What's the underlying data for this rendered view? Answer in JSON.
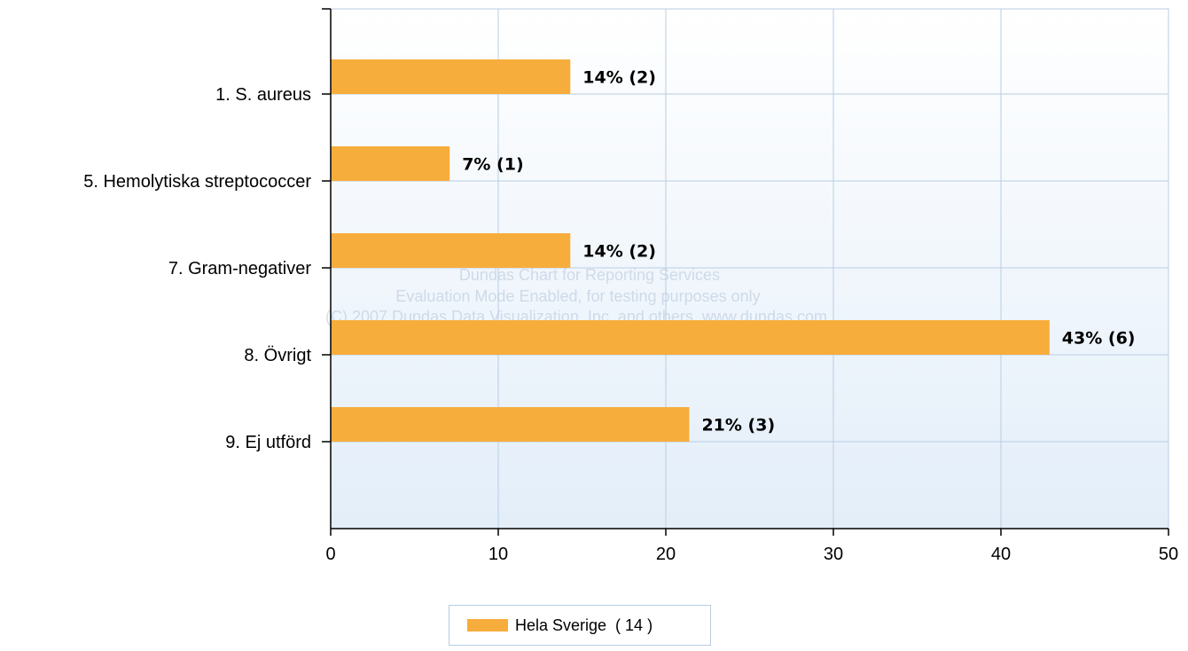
{
  "chart_data": {
    "type": "bar",
    "orientation": "horizontal",
    "categories": [
      "1. S. aureus",
      "5. Hemolytiska streptococcer",
      "7. Gram-negativer",
      "8. Övrigt",
      "9. Ej utförd"
    ],
    "series": [
      {
        "name": "Hela Sverige  ( 14 )",
        "values": [
          14.3,
          7.1,
          14.3,
          42.9,
          21.4
        ],
        "color": "#f7ad3c"
      }
    ],
    "data_labels": [
      "14% (2)",
      "7% (1)",
      "14% (2)",
      "43% (6)",
      "21% (3)"
    ],
    "xlim": [
      0,
      50
    ],
    "x_ticks": [
      "0",
      "10",
      "20",
      "30",
      "40",
      "50"
    ],
    "grid": true,
    "legend_position": "bottom-center",
    "watermark": [
      "Dundas Chart for Reporting Services",
      "Evaluation Mode Enabled, for testing purposes only",
      "(C) 2007 Dundas Data Visualization, Inc. and others. www.dundas.com"
    ],
    "colors": {
      "bar": "#f7ad3c",
      "grid": "#b9cde3",
      "plot_top": "#ffffff",
      "plot_bottom": "#e3eef9"
    }
  }
}
